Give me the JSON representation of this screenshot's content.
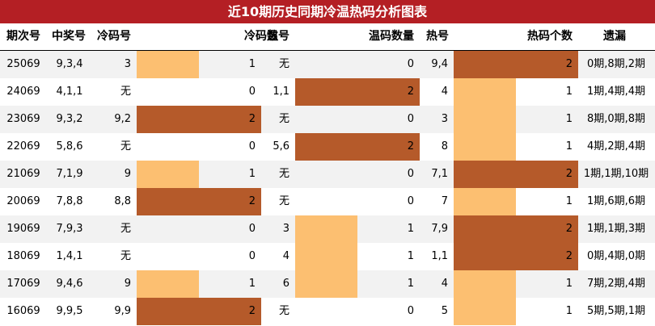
{
  "title": "近10期历史同期冷温热码分析图表",
  "colors": {
    "title_bg": "#b41f24",
    "bar_high": "#b55a2a",
    "bar_low": "#fcbf71",
    "row_alt": "#f2f2f2"
  },
  "headers": {
    "period": "期次号",
    "winning": "中奖号",
    "cold": "冷码号",
    "cold_count": "冷码数",
    "warm": "温号",
    "warm_count": "温码数量",
    "hot": "热号",
    "hot_count": "热码个数",
    "missing": "遗漏"
  },
  "chart_data": {
    "type": "table",
    "title": "近10期历史同期冷温热码分析图表",
    "columns": [
      "期次号",
      "中奖号",
      "冷码号",
      "冷码数",
      "温号",
      "温码数量",
      "热号",
      "热码个数",
      "遗漏"
    ],
    "bar_max": 2,
    "rows": [
      {
        "period": "25069",
        "winning": "9,3,4",
        "cold": "3",
        "cold_count": 1,
        "warm": "无",
        "warm_count": 0,
        "hot": "9,4",
        "hot_count": 2,
        "missing": "0期,8期,2期"
      },
      {
        "period": "24069",
        "winning": "4,1,1",
        "cold": "无",
        "cold_count": 0,
        "warm": "1,1",
        "warm_count": 2,
        "hot": "4",
        "hot_count": 1,
        "missing": "1期,4期,4期"
      },
      {
        "period": "23069",
        "winning": "9,3,2",
        "cold": "9,2",
        "cold_count": 2,
        "warm": "无",
        "warm_count": 0,
        "hot": "3",
        "hot_count": 1,
        "missing": "8期,0期,8期"
      },
      {
        "period": "22069",
        "winning": "5,8,6",
        "cold": "无",
        "cold_count": 0,
        "warm": "5,6",
        "warm_count": 2,
        "hot": "8",
        "hot_count": 1,
        "missing": "4期,2期,4期"
      },
      {
        "period": "21069",
        "winning": "7,1,9",
        "cold": "9",
        "cold_count": 1,
        "warm": "无",
        "warm_count": 0,
        "hot": "7,1",
        "hot_count": 2,
        "missing": "1期,1期,10期"
      },
      {
        "period": "20069",
        "winning": "7,8,8",
        "cold": "8,8",
        "cold_count": 2,
        "warm": "无",
        "warm_count": 0,
        "hot": "7",
        "hot_count": 1,
        "missing": "1期,6期,6期"
      },
      {
        "period": "19069",
        "winning": "7,9,3",
        "cold": "无",
        "cold_count": 0,
        "warm": "3",
        "warm_count": 1,
        "hot": "7,9",
        "hot_count": 2,
        "missing": "1期,1期,3期"
      },
      {
        "period": "18069",
        "winning": "1,4,1",
        "cold": "无",
        "cold_count": 0,
        "warm": "4",
        "warm_count": 1,
        "hot": "1,1",
        "hot_count": 2,
        "missing": "0期,4期,0期"
      },
      {
        "period": "17069",
        "winning": "9,4,6",
        "cold": "9",
        "cold_count": 1,
        "warm": "6",
        "warm_count": 1,
        "hot": "4",
        "hot_count": 1,
        "missing": "7期,2期,4期"
      },
      {
        "period": "16069",
        "winning": "9,9,5",
        "cold": "9,9",
        "cold_count": 2,
        "warm": "无",
        "warm_count": 0,
        "hot": "5",
        "hot_count": 1,
        "missing": "5期,5期,1期"
      }
    ]
  }
}
